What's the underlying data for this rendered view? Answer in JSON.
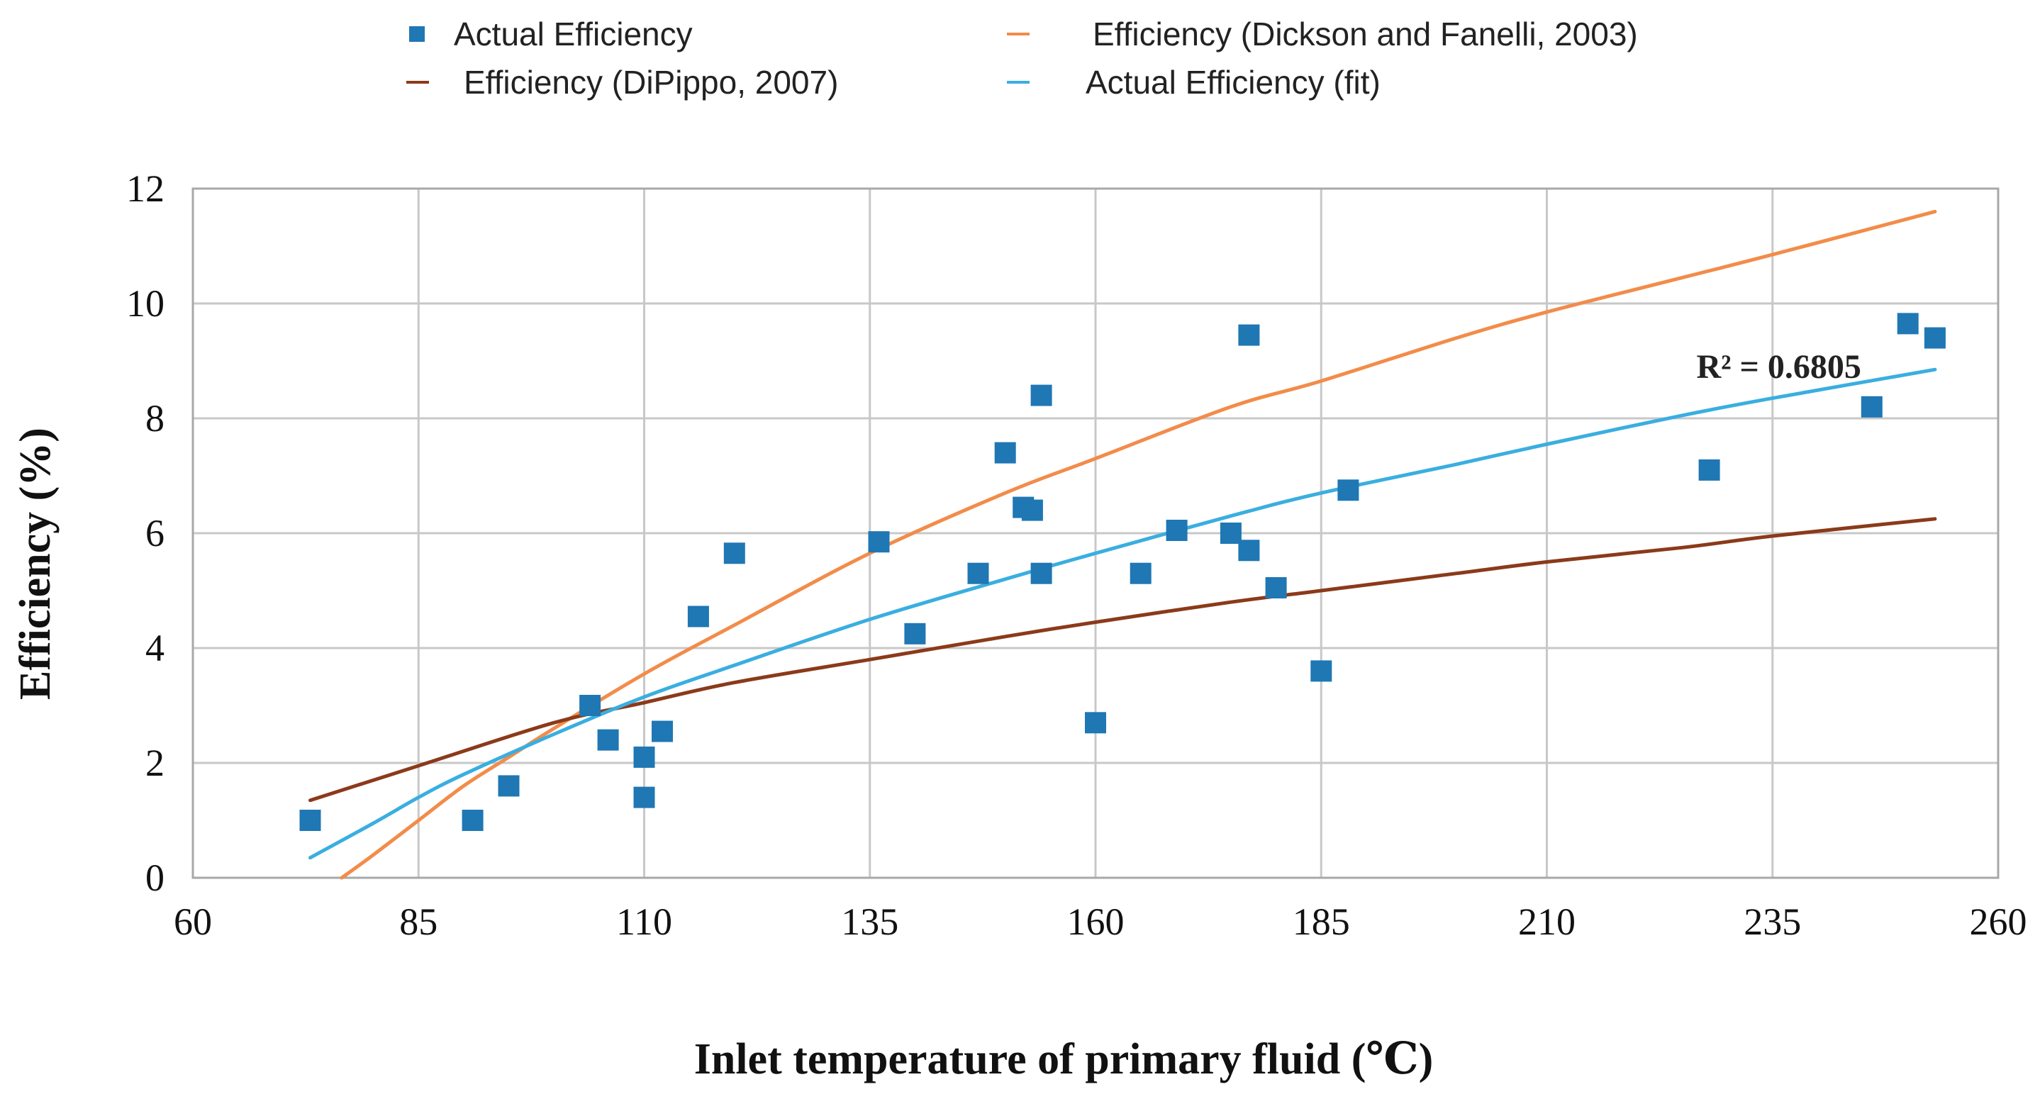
{
  "chart_data": {
    "type": "scatter",
    "title": "",
    "xlabel": "Inlet temperature of  primary fluid (℃)",
    "ylabel": "Efficiency (%)",
    "xlim": [
      60,
      260
    ],
    "ylim": [
      0,
      12
    ],
    "xticks": [
      60,
      85,
      110,
      135,
      160,
      185,
      210,
      235,
      260
    ],
    "yticks": [
      0,
      2,
      4,
      6,
      8,
      10,
      12
    ],
    "xtick_labels": [
      "60",
      "85",
      "110",
      "135",
      "160",
      "185",
      "210",
      "235",
      "260"
    ],
    "ytick_labels": [
      "0",
      "2",
      "4",
      "6",
      "8",
      "10",
      "12"
    ],
    "grid": true,
    "legend": {
      "placement": "top",
      "entries": [
        {
          "label": "Actual Efficiency",
          "marker": "square",
          "color": "#1f77b4"
        },
        {
          "label": "Efficiency (Dickson and Fanelli, 2003)",
          "marker": "line",
          "color": "#f28c4a"
        },
        {
          "label": "Efficiency (DiPippo, 2007)",
          "marker": "line",
          "color": "#8b3a1a"
        },
        {
          "label": "Actual Efficiency (fit)",
          "marker": "line",
          "color": "#3aaee0"
        }
      ]
    },
    "annotation": {
      "text": "R² = 0.6805",
      "x": 236,
      "y": 8.9
    },
    "series": [
      {
        "name": "Actual Efficiency",
        "kind": "scatter",
        "color": "#1f77b4",
        "x": [
          73,
          91,
          95,
          104,
          106,
          110,
          110,
          112,
          116,
          120,
          136,
          140,
          147,
          150,
          152,
          153,
          154,
          154,
          160,
          165,
          169,
          175,
          177,
          177,
          180,
          185,
          188,
          228,
          246,
          250,
          253
        ],
        "y": [
          1.0,
          1.0,
          1.6,
          3.0,
          2.4,
          2.1,
          1.4,
          2.55,
          4.55,
          5.65,
          5.85,
          4.25,
          5.3,
          7.4,
          6.45,
          6.4,
          8.4,
          5.3,
          2.7,
          5.3,
          6.05,
          6.0,
          5.7,
          9.45,
          5.05,
          3.6,
          6.75,
          7.1,
          8.2,
          9.65,
          9.4
        ]
      },
      {
        "name": "Efficiency (Dickson and Fanelli, 2003)",
        "kind": "line",
        "color": "#f28c4a",
        "x": [
          76.5,
          80,
          85,
          90,
          95,
          100,
          110,
          120,
          135,
          150,
          160,
          175,
          185,
          200,
          210,
          225,
          235,
          253
        ],
        "y": [
          0.0,
          0.4,
          1.0,
          1.6,
          2.1,
          2.6,
          3.55,
          4.4,
          5.65,
          6.7,
          7.3,
          8.2,
          8.65,
          9.4,
          9.85,
          10.45,
          10.85,
          11.6
        ]
      },
      {
        "name": "Efficiency (DiPippo, 2007)",
        "kind": "line",
        "color": "#8b3a1a",
        "x": [
          73,
          85,
          100,
          110,
          120,
          135,
          150,
          160,
          175,
          185,
          200,
          210,
          225,
          235,
          253
        ],
        "y": [
          1.35,
          1.95,
          2.7,
          3.05,
          3.4,
          3.8,
          4.2,
          4.45,
          4.8,
          5.0,
          5.3,
          5.5,
          5.75,
          5.95,
          6.25
        ]
      },
      {
        "name": "Actual Efficiency (fit)",
        "kind": "line",
        "color": "#3aaee0",
        "x": [
          73,
          80,
          85,
          90,
          100,
          110,
          120,
          135,
          150,
          160,
          175,
          185,
          200,
          210,
          225,
          235,
          253
        ],
        "y": [
          0.35,
          0.95,
          1.4,
          1.8,
          2.5,
          3.15,
          3.7,
          4.5,
          5.2,
          5.65,
          6.3,
          6.7,
          7.2,
          7.55,
          8.05,
          8.35,
          8.85
        ]
      }
    ]
  }
}
